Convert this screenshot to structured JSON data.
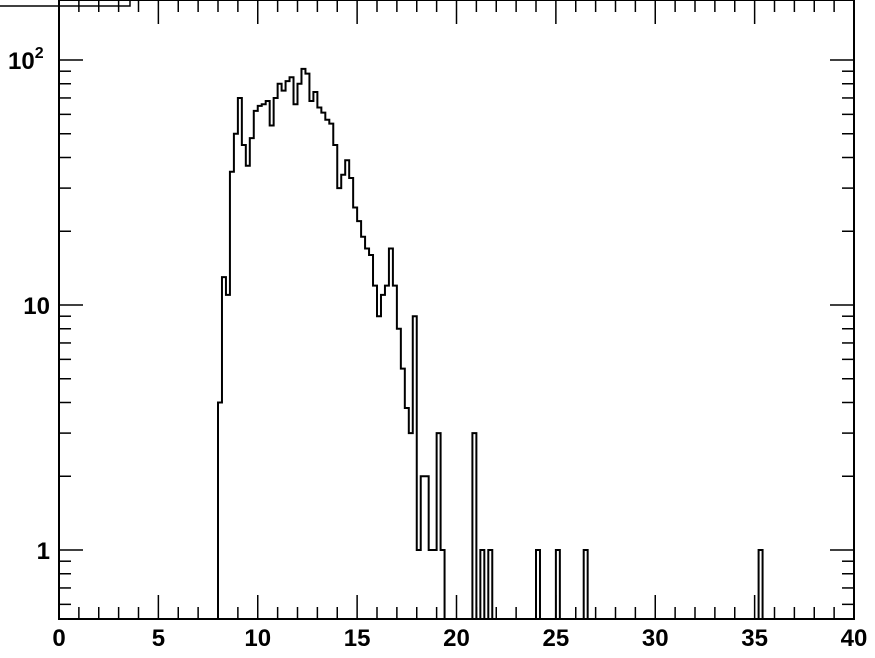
{
  "chart_data": {
    "type": "bar",
    "style": "step-histogram",
    "title": "",
    "xlabel": "",
    "ylabel": "",
    "xlim": [
      0,
      40
    ],
    "ylim": [
      0.5,
      180
    ],
    "y_scale": "log",
    "bin_width": 0.2,
    "x_tick_labels": [
      "0",
      "5",
      "10",
      "15",
      "20",
      "25",
      "30",
      "35",
      "40"
    ],
    "x_tick_values": [
      0,
      5,
      10,
      15,
      20,
      25,
      30,
      35,
      40
    ],
    "y_tick_labels": [
      {
        "value": 1,
        "label": "1"
      },
      {
        "value": 10,
        "label": "10"
      },
      {
        "value": 100,
        "base": "10",
        "exp": "2"
      }
    ],
    "grid": false,
    "bins": [
      {
        "x": 8.0,
        "y": 4
      },
      {
        "x": 8.2,
        "y": 13
      },
      {
        "x": 8.4,
        "y": 11
      },
      {
        "x": 8.6,
        "y": 35
      },
      {
        "x": 8.8,
        "y": 50
      },
      {
        "x": 9.0,
        "y": 70
      },
      {
        "x": 9.2,
        "y": 45
      },
      {
        "x": 9.4,
        "y": 37
      },
      {
        "x": 9.6,
        "y": 48
      },
      {
        "x": 9.8,
        "y": 62
      },
      {
        "x": 10.0,
        "y": 65
      },
      {
        "x": 10.2,
        "y": 66
      },
      {
        "x": 10.4,
        "y": 68
      },
      {
        "x": 10.6,
        "y": 54
      },
      {
        "x": 10.8,
        "y": 70
      },
      {
        "x": 11.0,
        "y": 80
      },
      {
        "x": 11.2,
        "y": 75
      },
      {
        "x": 11.4,
        "y": 82
      },
      {
        "x": 11.6,
        "y": 85
      },
      {
        "x": 11.8,
        "y": 66
      },
      {
        "x": 12.0,
        "y": 80
      },
      {
        "x": 12.2,
        "y": 92
      },
      {
        "x": 12.4,
        "y": 88
      },
      {
        "x": 12.6,
        "y": 68
      },
      {
        "x": 12.8,
        "y": 74
      },
      {
        "x": 13.0,
        "y": 64
      },
      {
        "x": 13.2,
        "y": 61
      },
      {
        "x": 13.4,
        "y": 57
      },
      {
        "x": 13.6,
        "y": 55
      },
      {
        "x": 13.8,
        "y": 45
      },
      {
        "x": 14.0,
        "y": 30
      },
      {
        "x": 14.2,
        "y": 34
      },
      {
        "x": 14.4,
        "y": 39
      },
      {
        "x": 14.6,
        "y": 33
      },
      {
        "x": 14.8,
        "y": 25
      },
      {
        "x": 15.0,
        "y": 22
      },
      {
        "x": 15.2,
        "y": 19
      },
      {
        "x": 15.4,
        "y": 17
      },
      {
        "x": 15.6,
        "y": 16
      },
      {
        "x": 15.8,
        "y": 12
      },
      {
        "x": 16.0,
        "y": 9
      },
      {
        "x": 16.2,
        "y": 11
      },
      {
        "x": 16.4,
        "y": 12
      },
      {
        "x": 16.6,
        "y": 17
      },
      {
        "x": 16.8,
        "y": 12
      },
      {
        "x": 17.0,
        "y": 8
      },
      {
        "x": 17.2,
        "y": 5.5
      },
      {
        "x": 17.4,
        "y": 3.8
      },
      {
        "x": 17.6,
        "y": 3
      },
      {
        "x": 17.8,
        "y": 9
      },
      {
        "x": 18.0,
        "y": 1
      },
      {
        "x": 18.2,
        "y": 2
      },
      {
        "x": 18.4,
        "y": 2
      },
      {
        "x": 18.6,
        "y": 1
      },
      {
        "x": 18.8,
        "y": 1
      },
      {
        "x": 19.0,
        "y": 3
      },
      {
        "x": 19.2,
        "y": 1
      },
      {
        "x": 19.4,
        "y": 0
      },
      {
        "x": 19.6,
        "y": 0
      },
      {
        "x": 19.8,
        "y": 0
      },
      {
        "x": 20.0,
        "y": 0
      },
      {
        "x": 20.2,
        "y": 0
      },
      {
        "x": 20.4,
        "y": 0
      },
      {
        "x": 20.6,
        "y": 0
      },
      {
        "x": 20.8,
        "y": 3
      },
      {
        "x": 21.0,
        "y": 0
      },
      {
        "x": 21.2,
        "y": 1
      },
      {
        "x": 21.4,
        "y": 0
      },
      {
        "x": 21.6,
        "y": 1
      },
      {
        "x": 21.8,
        "y": 0
      },
      {
        "x": 22.0,
        "y": 0
      },
      {
        "x": 22.2,
        "y": 0
      },
      {
        "x": 22.4,
        "y": 0
      },
      {
        "x": 22.6,
        "y": 0
      },
      {
        "x": 22.8,
        "y": 0
      },
      {
        "x": 23.0,
        "y": 0
      },
      {
        "x": 23.2,
        "y": 0
      },
      {
        "x": 23.4,
        "y": 0
      },
      {
        "x": 23.6,
        "y": 0
      },
      {
        "x": 23.8,
        "y": 0
      },
      {
        "x": 24.0,
        "y": 1
      },
      {
        "x": 24.2,
        "y": 0
      },
      {
        "x": 24.4,
        "y": 0
      },
      {
        "x": 24.6,
        "y": 0
      },
      {
        "x": 24.8,
        "y": 0
      },
      {
        "x": 25.0,
        "y": 1
      },
      {
        "x": 25.2,
        "y": 0
      },
      {
        "x": 25.4,
        "y": 0
      },
      {
        "x": 25.6,
        "y": 0
      },
      {
        "x": 25.8,
        "y": 0
      },
      {
        "x": 26.0,
        "y": 0
      },
      {
        "x": 26.2,
        "y": 0
      },
      {
        "x": 26.4,
        "y": 1
      },
      {
        "x": 26.6,
        "y": 0
      },
      {
        "x": 26.8,
        "y": 0
      },
      {
        "x": 27.0,
        "y": 0
      },
      {
        "x": 27.2,
        "y": 0
      },
      {
        "x": 27.4,
        "y": 0
      },
      {
        "x": 27.6,
        "y": 0
      },
      {
        "x": 27.8,
        "y": 0
      },
      {
        "x": 28.0,
        "y": 0
      },
      {
        "x": 28.2,
        "y": 0
      },
      {
        "x": 28.4,
        "y": 0
      },
      {
        "x": 28.6,
        "y": 0
      },
      {
        "x": 28.8,
        "y": 0
      },
      {
        "x": 29.0,
        "y": 0
      },
      {
        "x": 29.2,
        "y": 0
      },
      {
        "x": 29.4,
        "y": 0
      },
      {
        "x": 29.6,
        "y": 0
      },
      {
        "x": 29.8,
        "y": 0
      },
      {
        "x": 30.0,
        "y": 0
      },
      {
        "x": 30.2,
        "y": 0
      },
      {
        "x": 30.4,
        "y": 0
      },
      {
        "x": 30.6,
        "y": 0
      },
      {
        "x": 30.8,
        "y": 0
      },
      {
        "x": 31.0,
        "y": 0
      },
      {
        "x": 31.2,
        "y": 0
      },
      {
        "x": 31.4,
        "y": 0
      },
      {
        "x": 31.6,
        "y": 0
      },
      {
        "x": 31.8,
        "y": 0
      },
      {
        "x": 32.0,
        "y": 0
      },
      {
        "x": 32.2,
        "y": 0
      },
      {
        "x": 32.4,
        "y": 0
      },
      {
        "x": 32.6,
        "y": 0
      },
      {
        "x": 32.8,
        "y": 0
      },
      {
        "x": 33.0,
        "y": 0
      },
      {
        "x": 33.2,
        "y": 0
      },
      {
        "x": 33.4,
        "y": 0
      },
      {
        "x": 33.6,
        "y": 0
      },
      {
        "x": 33.8,
        "y": 0
      },
      {
        "x": 34.0,
        "y": 0
      },
      {
        "x": 34.2,
        "y": 0
      },
      {
        "x": 34.4,
        "y": 0
      },
      {
        "x": 34.6,
        "y": 0
      },
      {
        "x": 34.8,
        "y": 0
      },
      {
        "x": 35.0,
        "y": 0
      },
      {
        "x": 35.2,
        "y": 1
      }
    ],
    "line_color": "#000000",
    "background": "#ffffff"
  }
}
